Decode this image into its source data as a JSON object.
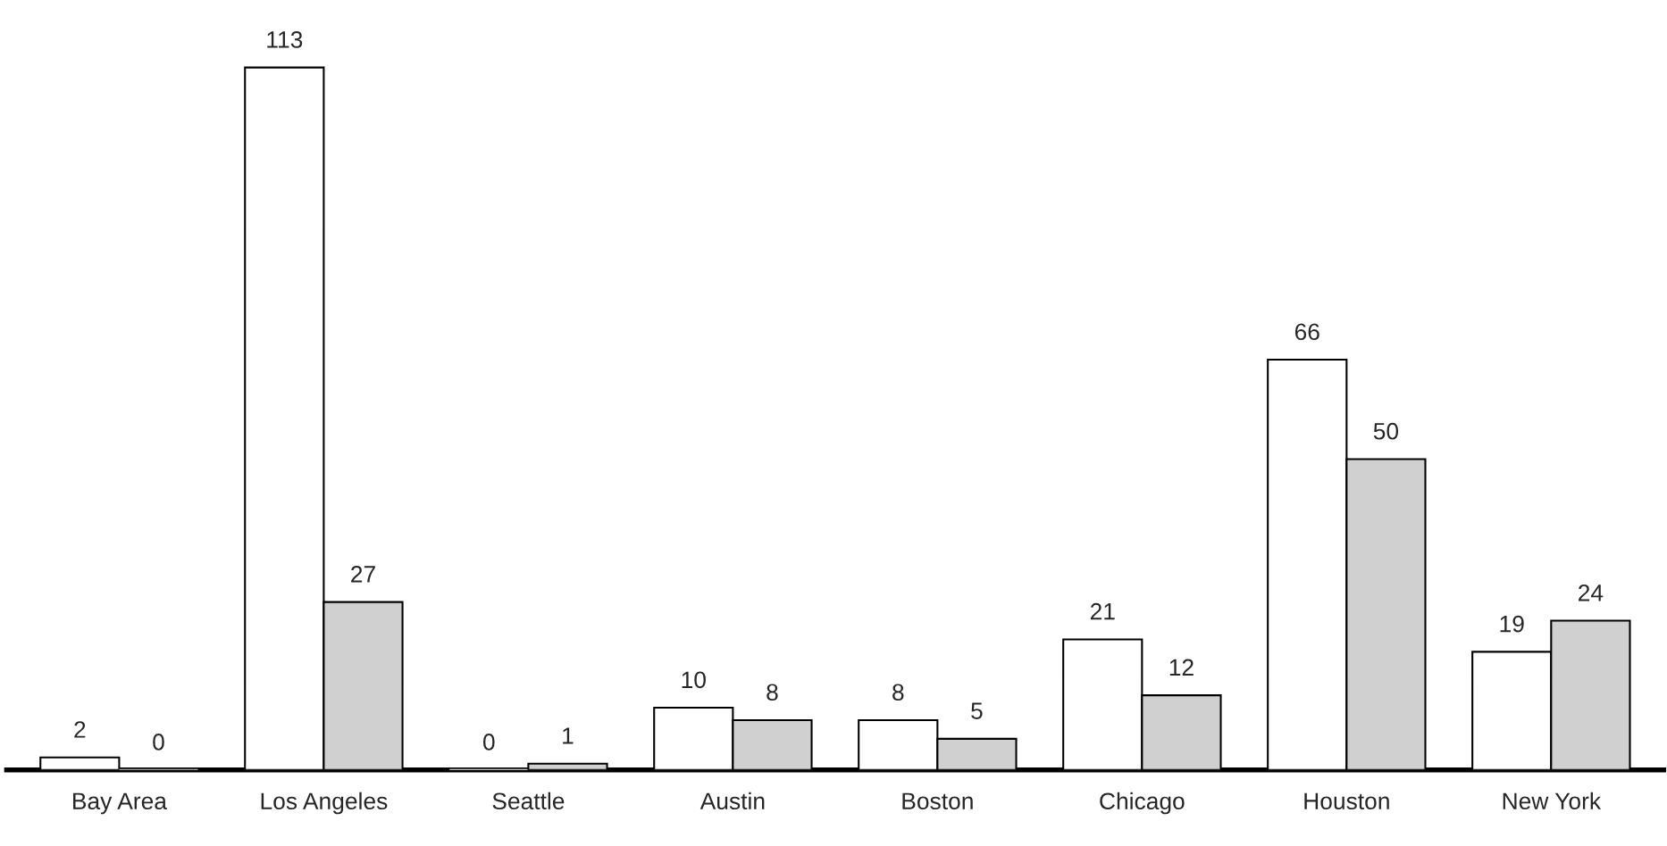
{
  "chart_data": {
    "type": "bar",
    "categories": [
      "Bay Area",
      "Los Angeles",
      "Seattle",
      "Austin",
      "Boston",
      "Chicago",
      "Houston",
      "New York"
    ],
    "series": [
      {
        "color": "#ffffff",
        "values": [
          2,
          113,
          0,
          10,
          8,
          21,
          66,
          19
        ]
      },
      {
        "color": "#d0d0d0",
        "values": [
          0,
          27,
          1,
          8,
          5,
          12,
          50,
          24
        ]
      }
    ],
    "data_labels": true,
    "grid": false,
    "legend": false,
    "tick_labels": "x"
  }
}
